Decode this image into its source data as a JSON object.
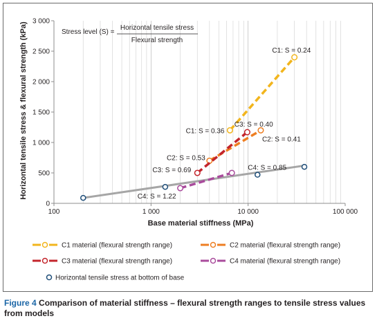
{
  "caption": {
    "label": "Figure 4",
    "text": "Comparison of material stiffness – flexural strength ranges to tensile stress values from models"
  },
  "formula": {
    "lhs": "Stress level (S) =",
    "numerator": "Horizontal tensile stress",
    "denominator": "Flexural strength"
  },
  "chart_data": {
    "type": "line",
    "xlabel": "Base material stiffness (MPa)",
    "ylabel": "Horizontal tensile stress & flexural strength (kPa)",
    "xscale": "log",
    "xlim": [
      100,
      100000
    ],
    "ylim": [
      0,
      3000
    ],
    "x_ticks": [
      {
        "value": 100,
        "label": "100"
      },
      {
        "value": 1000,
        "label": "1 000"
      },
      {
        "value": 10000,
        "label": "10 000"
      },
      {
        "value": 100000,
        "label": "100 000"
      }
    ],
    "y_ticks": [
      {
        "value": 0,
        "label": "0"
      },
      {
        "value": 500,
        "label": "500"
      },
      {
        "value": 1000,
        "label": "1 000"
      },
      {
        "value": 1500,
        "label": "1 500"
      },
      {
        "value": 2000,
        "label": "2 000"
      },
      {
        "value": 2500,
        "label": "2 500"
      },
      {
        "value": 3000,
        "label": "3 000"
      }
    ],
    "grid": "vertical minor gridlines",
    "legend_position": "bottom",
    "series": [
      {
        "name": "C1 material (flexural strength range)",
        "color": "#f2b51d",
        "style": "dashed",
        "marker": "open-circle",
        "x": [
          6500,
          30000
        ],
        "y": [
          1200,
          2400
        ]
      },
      {
        "name": "C2 material (flexural strength range)",
        "color": "#ee7e22",
        "style": "dashed",
        "marker": "open-circle",
        "x": [
          4000,
          13500
        ],
        "y": [
          700,
          1200
        ]
      },
      {
        "name": "C3 material (flexural strength range)",
        "color": "#c3242b",
        "style": "dashed",
        "marker": "open-circle",
        "x": [
          3000,
          9800
        ],
        "y": [
          500,
          1170
        ]
      },
      {
        "name": "C4 material (flexural strength range)",
        "color": "#a94b9c",
        "style": "dashed",
        "marker": "open-circle",
        "x": [
          2000,
          6800
        ],
        "y": [
          250,
          500
        ]
      }
    ],
    "tensile_points": {
      "name": "Horizontal tensile stress at bottom of base",
      "color": "#1f4e79",
      "marker": "open-circle",
      "x": [
        200,
        1400,
        12500,
        38000
      ],
      "y": [
        90,
        270,
        470,
        600
      ]
    },
    "trend_line": {
      "color": "#a6a6a6",
      "x": [
        200,
        38000
      ],
      "y": [
        90,
        620
      ]
    },
    "annotations": [
      {
        "text": "C1: S = 0.24",
        "x": 28000,
        "y": 2400
      },
      {
        "text": "C1: S = 0.36",
        "x": 6300,
        "y": 1200
      },
      {
        "text": "C3: S = 0.40",
        "x": 9700,
        "y": 1170
      },
      {
        "text": "C2: S = 0.41",
        "x": 13500,
        "y": 1200
      },
      {
        "text": "C2: S = 0.53",
        "x": 4000,
        "y": 700
      },
      {
        "text": "C3: S = 0.69",
        "x": 3000,
        "y": 500
      },
      {
        "text": "C4: S = 0.85",
        "x": 12500,
        "y": 470
      },
      {
        "text": "C4: S = 1.22",
        "x": 2000,
        "y": 250
      }
    ]
  }
}
